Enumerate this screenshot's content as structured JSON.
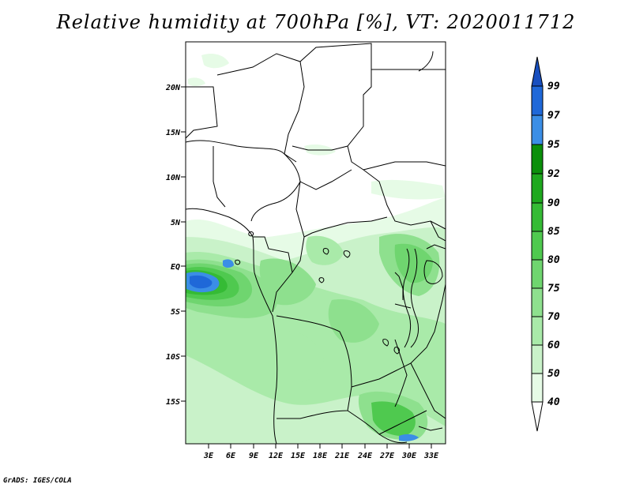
{
  "title": "Relative humidity at 700hPa [%], VT: 2020011712",
  "credit": "GrADS: IGES/COLA",
  "map": {
    "lat_labels": [
      "20N",
      "15N",
      "10N",
      "5N",
      "EQ",
      "5S",
      "10S",
      "15S"
    ],
    "lon_labels": [
      "3E",
      "6E",
      "9E",
      "12E",
      "15E",
      "18E",
      "21E",
      "24E",
      "27E",
      "30E",
      "33E"
    ]
  },
  "colorbar": {
    "levels": [
      "40",
      "50",
      "60",
      "70",
      "75",
      "80",
      "85",
      "90",
      "92",
      "95",
      "97",
      "99"
    ],
    "colors": [
      "#ffffff",
      "#e6fbe6",
      "#c9f2c9",
      "#a9eaa9",
      "#8ee08e",
      "#6fd56f",
      "#4fc94f",
      "#35bb35",
      "#1ea81e",
      "#0b8f0b",
      "#3b8ee6",
      "#1f68d8",
      "#184fbf"
    ]
  }
}
